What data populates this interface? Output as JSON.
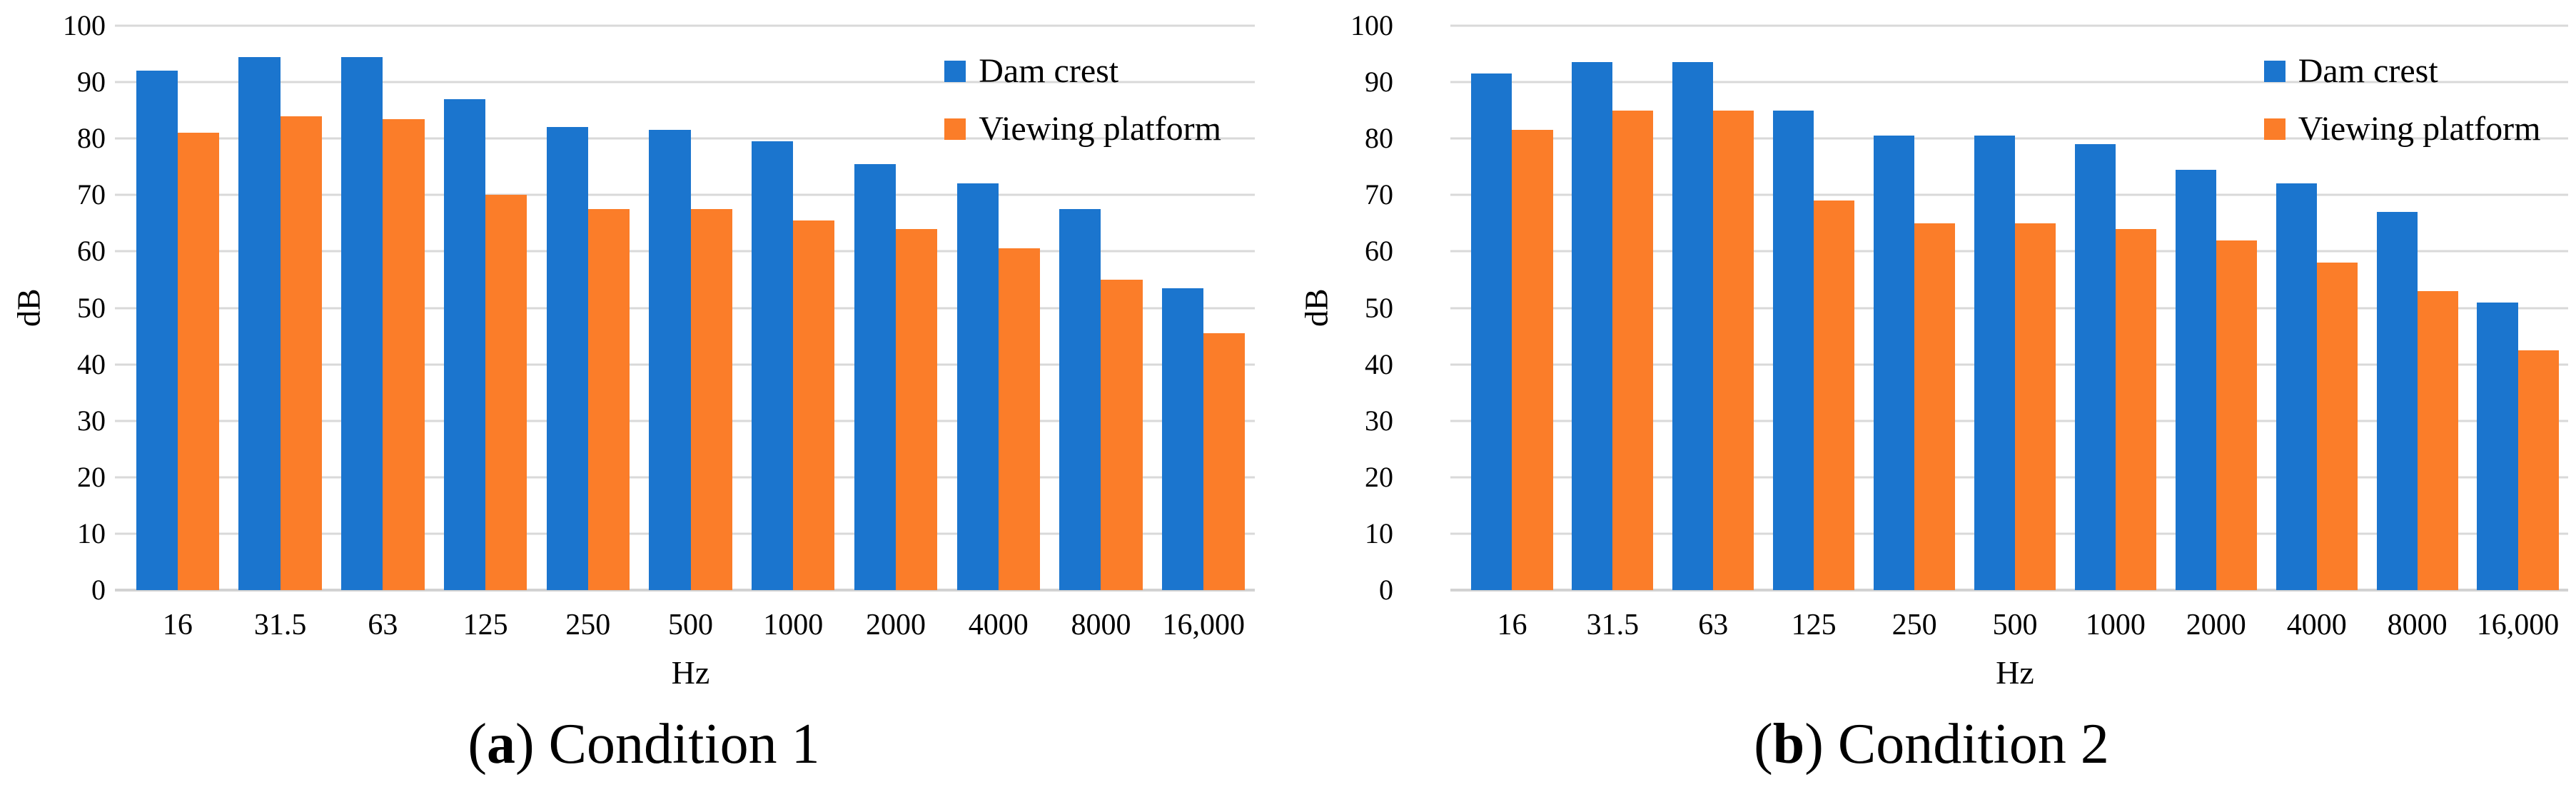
{
  "captions": [
    {
      "open": "(",
      "letter": "a",
      "rest": ") Condition 1"
    },
    {
      "open": "(",
      "letter": "b",
      "rest": ") Condition 2"
    }
  ],
  "colors": {
    "dam_crest": "#1B75CE",
    "viewing_platform": "#FB7D29",
    "gridline": "#D9D9D9"
  },
  "chart_data": [
    {
      "type": "bar",
      "title": "(a) Condition 1",
      "categories": [
        "16",
        "31.5",
        "63",
        "125",
        "250",
        "500",
        "1000",
        "2000",
        "4000",
        "8000",
        "16,000"
      ],
      "series": [
        {
          "name": "Dam crest",
          "color": "#1B75CE",
          "values": [
            92,
            94.5,
            94.5,
            87,
            82,
            81.5,
            79.5,
            75.5,
            72,
            67.5,
            53.5
          ]
        },
        {
          "name": "Viewing platform",
          "color": "#FB7D29",
          "values": [
            81,
            84,
            83.5,
            70,
            67.5,
            67.5,
            65.5,
            64,
            60.5,
            55,
            45.5
          ]
        }
      ],
      "xlabel": "Hz",
      "ylabel": "dB",
      "ylim": [
        0,
        100
      ],
      "yticks": [
        0,
        10,
        20,
        30,
        40,
        50,
        60,
        70,
        80,
        90,
        100
      ],
      "grid": true,
      "legend_position": "top-right"
    },
    {
      "type": "bar",
      "title": "(b) Condition 2",
      "categories": [
        "16",
        "31.5",
        "63",
        "125",
        "250",
        "500",
        "1000",
        "2000",
        "4000",
        "8000",
        "16,000"
      ],
      "series": [
        {
          "name": "Dam crest",
          "color": "#1B75CE",
          "values": [
            91.5,
            93.5,
            93.5,
            85,
            80.5,
            80.5,
            79,
            74.5,
            72,
            67,
            51
          ]
        },
        {
          "name": "Viewing platform",
          "color": "#FB7D29",
          "values": [
            81.5,
            85,
            85,
            69,
            65,
            65,
            64,
            62,
            58,
            53,
            42.5
          ]
        }
      ],
      "xlabel": "Hz",
      "ylabel": "dB",
      "ylim": [
        0,
        100
      ],
      "yticks": [
        0,
        10,
        20,
        30,
        40,
        50,
        60,
        70,
        80,
        90,
        100
      ],
      "grid": true,
      "legend_position": "top-right"
    }
  ]
}
